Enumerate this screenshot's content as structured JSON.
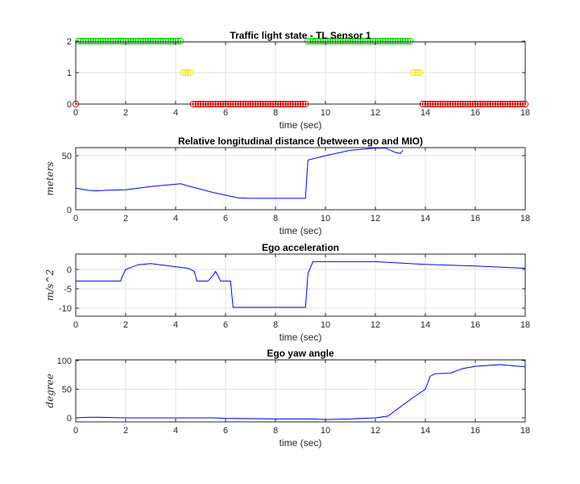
{
  "chart_data": [
    {
      "type": "scatter",
      "title": "Traffic light state - TL Sensor 1",
      "xlabel": "time (sec)",
      "ylabel": "",
      "xlim": [
        0,
        18
      ],
      "ylim": [
        0,
        2
      ],
      "xticks": [
        0,
        2,
        4,
        6,
        8,
        10,
        12,
        14,
        16,
        18
      ],
      "yticks": [
        0,
        1,
        2
      ],
      "grid": true,
      "marker": "circle",
      "series": [
        {
          "color": "#00dd00",
          "y": 2,
          "x_start": 0.1,
          "x_end": 4.2,
          "step": 0.1
        },
        {
          "color": "#00dd00",
          "y": 2,
          "x_start": 9.3,
          "x_end": 13.4,
          "step": 0.1
        },
        {
          "color": "#eeee00",
          "y": 1,
          "x_start": 4.3,
          "x_end": 4.6,
          "step": 0.1
        },
        {
          "color": "#eeee00",
          "y": 1,
          "x_start": 13.5,
          "x_end": 13.8,
          "step": 0.1
        },
        {
          "color": "#ff0000",
          "y": 0,
          "x_start": 0,
          "x_end": 0,
          "step": 0.1
        },
        {
          "color": "#ff0000",
          "y": 0,
          "x_start": 4.7,
          "x_end": 9.2,
          "step": 0.1
        },
        {
          "color": "#ff0000",
          "y": 0,
          "x_start": 13.9,
          "x_end": 18.0,
          "step": 0.1
        }
      ]
    },
    {
      "type": "line",
      "title": "Relative longitudinal distance (between ego and MIO)",
      "xlabel": "time (sec)",
      "ylabel": "meters",
      "xlim": [
        0,
        18
      ],
      "ylim": [
        0,
        58
      ],
      "xticks": [
        0,
        2,
        4,
        6,
        8,
        10,
        12,
        14,
        16,
        18
      ],
      "yticks": [
        0,
        50
      ],
      "grid": true,
      "series": [
        {
          "color": "#0000ff",
          "x": [
            0,
            0.5,
            0.8,
            1.2,
            2,
            3,
            4.2,
            4.5,
            5.5,
            6.5,
            7,
            8,
            9.2,
            9.25,
            9.3,
            10,
            11,
            12,
            12.4,
            12.8,
            13,
            13.1
          ],
          "y": [
            20,
            18,
            17.5,
            18,
            18.5,
            21.5,
            24,
            22,
            16,
            11,
            10.5,
            10.5,
            10.5,
            30,
            46,
            50,
            55,
            57,
            57,
            53,
            52,
            55
          ]
        }
      ]
    },
    {
      "type": "line",
      "title": "Ego acceleration",
      "xlabel": "time (sec)",
      "ylabel": "m/s^2",
      "xlim": [
        0,
        18
      ],
      "ylim": [
        -12,
        4
      ],
      "xticks": [
        0,
        2,
        4,
        6,
        8,
        10,
        12,
        14,
        16,
        18
      ],
      "yticks": [
        -10,
        -5,
        0
      ],
      "grid": true,
      "series": [
        {
          "color": "#0000ff",
          "x": [
            0,
            1.8,
            1.85,
            2,
            2.5,
            3,
            4.5,
            4.75,
            4.85,
            5.3,
            5.5,
            5.6,
            5.8,
            6.2,
            6.3,
            9.2,
            9.3,
            9.5,
            10,
            12,
            14,
            16,
            18
          ],
          "y": [
            -3,
            -3,
            -2,
            0,
            1.2,
            1.5,
            0.3,
            -0.5,
            -3,
            -3,
            -1.5,
            -0.5,
            -3,
            -3,
            -9.8,
            -9.8,
            -1,
            2,
            2,
            2,
            1.3,
            0.9,
            0.3
          ]
        }
      ]
    },
    {
      "type": "line",
      "title": "Ego yaw angle",
      "xlabel": "time (sec)",
      "ylabel": "degree",
      "xlim": [
        0,
        18
      ],
      "ylim": [
        -5,
        100
      ],
      "xticks": [
        0,
        2,
        4,
        6,
        8,
        10,
        12,
        14,
        16,
        18
      ],
      "yticks": [
        0,
        50,
        100
      ],
      "grid": true,
      "series": [
        {
          "color": "#0000ff",
          "x": [
            0,
            0.5,
            1,
            2,
            4,
            5.5,
            6,
            8,
            9.5,
            10,
            11,
            12,
            12.5,
            13.5,
            14,
            14.2,
            14.4,
            15,
            15.5,
            16,
            17,
            18
          ],
          "y": [
            0,
            1,
            1,
            0,
            0,
            0,
            -1,
            -2,
            -2,
            -3,
            -2,
            0,
            3,
            35,
            50,
            73,
            77,
            78,
            86,
            90,
            93,
            89
          ]
        }
      ]
    }
  ]
}
